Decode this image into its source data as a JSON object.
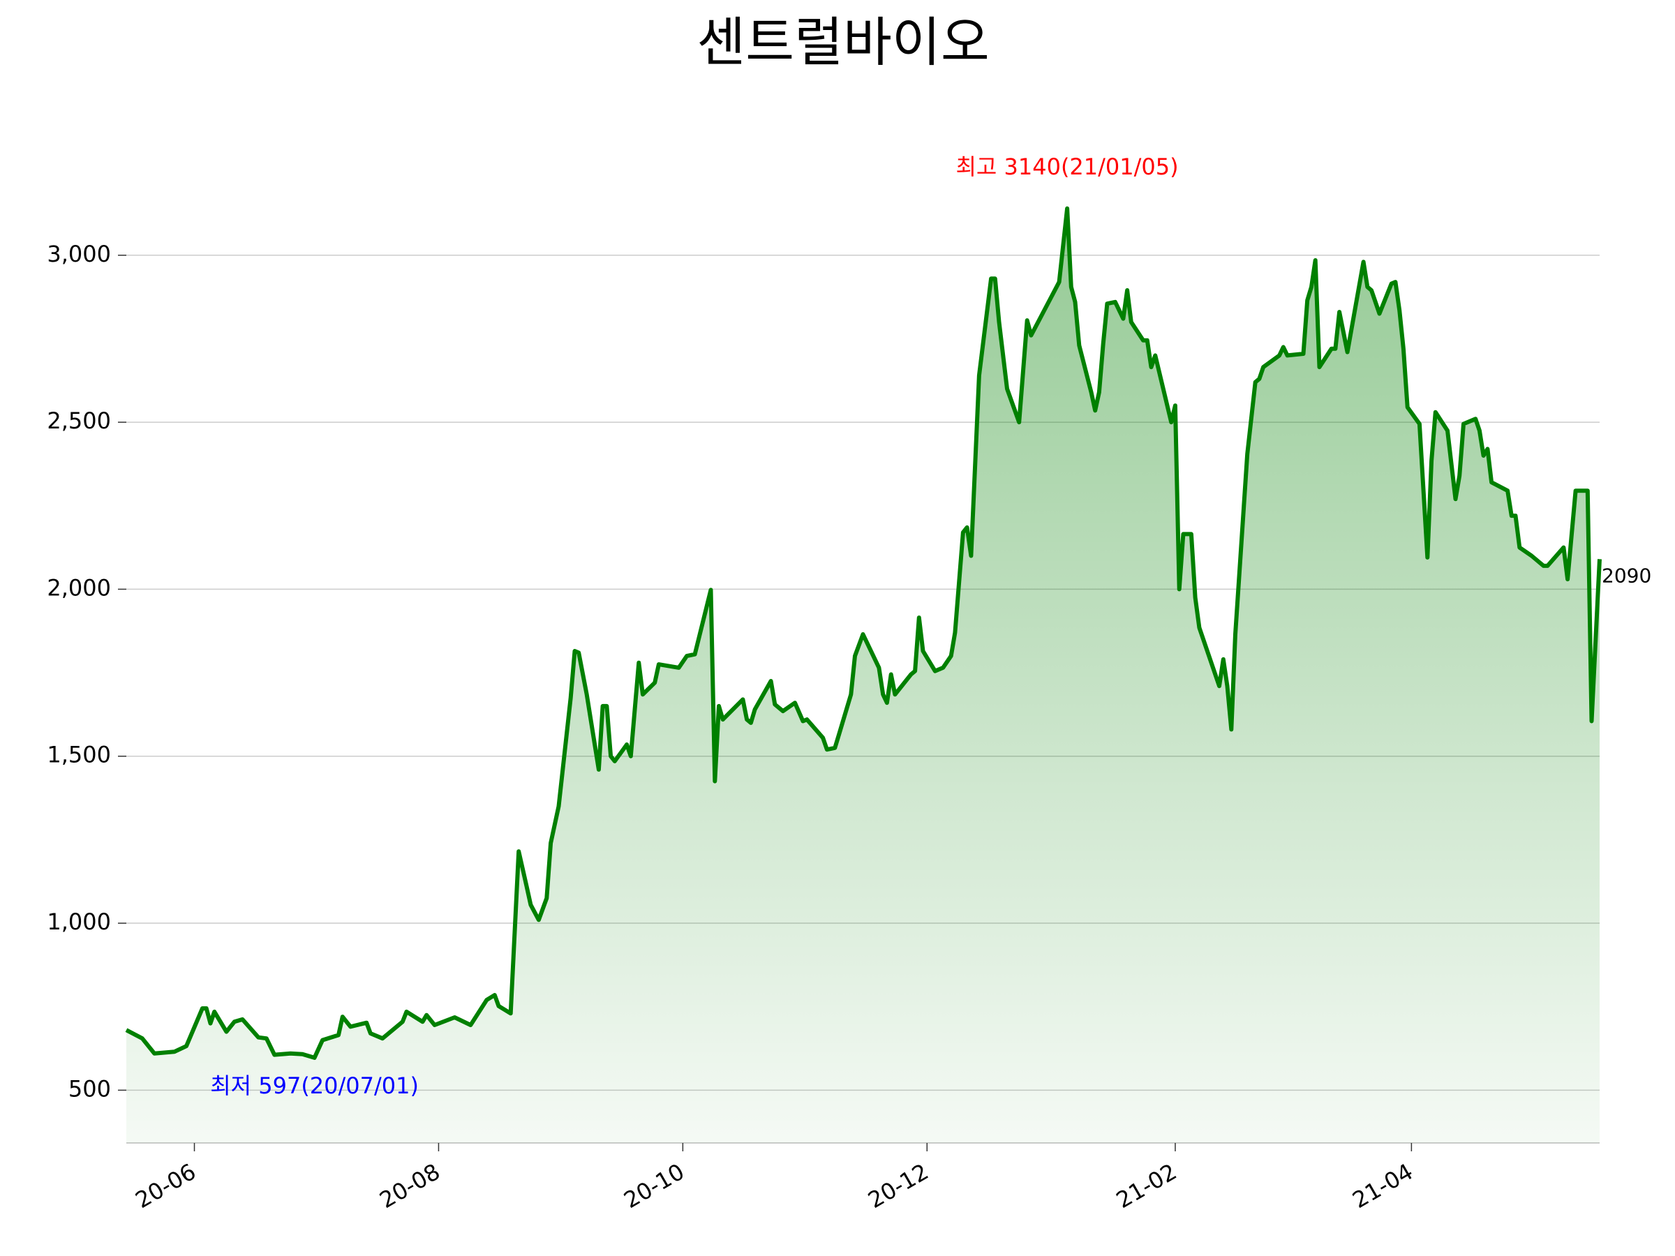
{
  "chart_data": {
    "type": "line",
    "title": "센트럴바이오",
    "x": [
      "2020-05-15",
      "2020-05-19",
      "2020-05-22",
      "2020-05-27",
      "2020-05-30",
      "2020-06-03",
      "2020-06-04",
      "2020-06-05",
      "2020-06-06",
      "2020-06-09",
      "2020-06-11",
      "2020-06-13",
      "2020-06-17",
      "2020-06-19",
      "2020-06-21",
      "2020-06-25",
      "2020-06-28",
      "2020-07-01",
      "2020-07-03",
      "2020-07-07",
      "2020-07-08",
      "2020-07-10",
      "2020-07-14",
      "2020-07-15",
      "2020-07-18",
      "2020-07-23",
      "2020-07-24",
      "2020-07-28",
      "2020-07-29",
      "2020-07-31",
      "2020-08-05",
      "2020-08-09",
      "2020-08-13",
      "2020-08-15",
      "2020-08-16",
      "2020-08-19",
      "2020-08-21",
      "2020-08-23",
      "2020-08-24",
      "2020-08-26",
      "2020-08-28",
      "2020-08-29",
      "2020-08-31",
      "2020-09-03",
      "2020-09-04",
      "2020-09-05",
      "2020-09-07",
      "2020-09-10",
      "2020-09-11",
      "2020-09-12",
      "2020-09-13",
      "2020-09-14",
      "2020-09-17",
      "2020-09-18",
      "2020-09-20",
      "2020-09-21",
      "2020-09-24",
      "2020-09-25",
      "2020-09-30",
      "2020-10-02",
      "2020-10-04",
      "2020-10-08",
      "2020-10-09",
      "2020-10-10",
      "2020-10-11",
      "2020-10-16",
      "2020-10-17",
      "2020-10-18",
      "2020-10-19",
      "2020-10-23",
      "2020-10-24",
      "2020-10-26",
      "2020-10-29",
      "2020-10-31",
      "2020-11-01",
      "2020-11-05",
      "2020-11-06",
      "2020-11-08",
      "2020-11-09",
      "2020-11-12",
      "2020-11-13",
      "2020-11-15",
      "2020-11-19",
      "2020-11-20",
      "2020-11-21",
      "2020-11-22",
      "2020-11-23",
      "2020-11-27",
      "2020-11-28",
      "2020-11-29",
      "2020-11-30",
      "2020-12-03",
      "2020-12-05",
      "2020-12-07",
      "2020-12-08",
      "2020-12-10",
      "2020-12-11",
      "2020-12-12",
      "2020-12-14",
      "2020-12-17",
      "2020-12-18",
      "2020-12-19",
      "2020-12-21",
      "2020-12-24",
      "2020-12-26",
      "2020-12-27",
      "2021-01-03",
      "2021-01-05",
      "2021-01-06",
      "2021-01-07",
      "2021-01-08",
      "2021-01-11",
      "2021-01-12",
      "2021-01-13",
      "2021-01-14",
      "2021-01-15",
      "2021-01-17",
      "2021-01-19",
      "2021-01-20",
      "2021-01-21",
      "2021-01-24",
      "2021-01-25",
      "2021-01-26",
      "2021-01-27",
      "2021-01-31",
      "2021-02-01",
      "2021-02-02",
      "2021-02-03",
      "2021-02-05",
      "2021-02-06",
      "2021-02-07",
      "2021-02-12",
      "2021-02-13",
      "2021-02-14",
      "2021-02-15",
      "2021-02-16",
      "2021-02-19",
      "2021-02-21",
      "2021-02-22",
      "2021-02-23",
      "2021-02-27",
      "2021-02-28",
      "2021-03-01",
      "2021-03-05",
      "2021-03-06",
      "2021-03-07",
      "2021-03-08",
      "2021-03-09",
      "2021-03-12",
      "2021-03-13",
      "2021-03-14",
      "2021-03-16",
      "2021-03-20",
      "2021-03-21",
      "2021-03-22",
      "2021-03-24",
      "2021-03-27",
      "2021-03-28",
      "2021-03-29",
      "2021-03-30",
      "2021-03-31",
      "2021-04-03",
      "2021-04-05",
      "2021-04-06",
      "2021-04-07",
      "2021-04-10",
      "2021-04-12",
      "2021-04-13",
      "2021-04-14",
      "2021-04-17",
      "2021-04-18",
      "2021-04-19",
      "2021-04-20",
      "2021-04-21",
      "2021-04-25",
      "2021-04-26",
      "2021-04-27",
      "2021-04-28",
      "2021-05-01",
      "2021-05-04",
      "2021-05-05",
      "2021-05-09",
      "2021-05-10",
      "2021-05-12",
      "2021-05-15",
      "2021-05-16",
      "2021-05-18"
    ],
    "values": [
      680,
      655,
      610,
      615,
      632,
      745,
      745,
      700,
      735,
      675,
      705,
      712,
      658,
      655,
      606,
      610,
      608,
      597,
      650,
      665,
      720,
      690,
      702,
      670,
      655,
      705,
      735,
      705,
      725,
      695,
      718,
      695,
      770,
      785,
      752,
      730,
      1215,
      1110,
      1055,
      1010,
      1075,
      1240,
      1350,
      1675,
      1815,
      1810,
      1685,
      1460,
      1650,
      1650,
      1500,
      1485,
      1535,
      1500,
      1780,
      1685,
      1720,
      1775,
      1765,
      1800,
      1805,
      1998,
      1425,
      1650,
      1610,
      1670,
      1610,
      1600,
      1640,
      1725,
      1655,
      1635,
      1660,
      1605,
      1610,
      1555,
      1520,
      1525,
      1565,
      1685,
      1800,
      1865,
      1765,
      1685,
      1660,
      1745,
      1685,
      1745,
      1755,
      1915,
      1815,
      1755,
      1765,
      1800,
      1870,
      2170,
      2185,
      2100,
      2640,
      2930,
      2930,
      2800,
      2600,
      2500,
      2805,
      2760,
      2920,
      3140,
      2905,
      2860,
      2730,
      2590,
      2535,
      2590,
      2735,
      2855,
      2860,
      2810,
      2895,
      2800,
      2745,
      2745,
      2665,
      2700,
      2500,
      2550,
      2000,
      2165,
      2165,
      1975,
      1885,
      1710,
      1790,
      1710,
      1580,
      1865,
      2405,
      2620,
      2630,
      2665,
      2700,
      2725,
      2700,
      2705,
      2865,
      2905,
      2985,
      2665,
      2720,
      2720,
      2830,
      2710,
      2980,
      2905,
      2895,
      2825,
      2915,
      2920,
      2835,
      2720,
      2545,
      2495,
      2095,
      2385,
      2530,
      2475,
      2270,
      2340,
      2495,
      2510,
      2475,
      2400,
      2420,
      2320,
      2295,
      2220,
      2220,
      2125,
      2100,
      2070,
      2070,
      2125,
      2030,
      2295,
      2295,
      1605,
      2090
    ],
    "color": "#008000",
    "xlim": [
      "2020-05-15",
      "2021-05-18"
    ],
    "xticks": [
      {
        "value": "2020-06-01",
        "label": "20-06"
      },
      {
        "value": "2020-08-01",
        "label": "20-08"
      },
      {
        "value": "2020-10-01",
        "label": "20-10"
      },
      {
        "value": "2020-12-01",
        "label": "20-12"
      },
      {
        "value": "2021-02-01",
        "label": "21-02"
      },
      {
        "value": "2021-04-01",
        "label": "21-04"
      }
    ],
    "ylim": [
      342,
      3315
    ],
    "yticks": [
      500,
      {
        "value": 1000,
        "label": "1,000"
      },
      {
        "value": 1500,
        "label": "1,500"
      },
      {
        "value": 2000,
        "label": "2,000"
      },
      {
        "value": 2500,
        "label": "2,500"
      },
      {
        "value": 3000,
        "label": "3,000"
      }
    ],
    "grid": true,
    "annotations": [
      {
        "text": "최고 3140(21/01/05)",
        "color": "#ff0000"
      },
      {
        "text": "최저 597(20/07/01)",
        "color": "#0000ff"
      }
    ]
  }
}
